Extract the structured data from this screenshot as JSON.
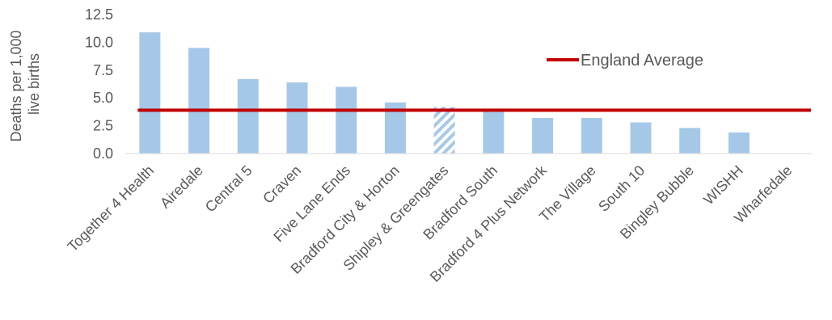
{
  "chart_data": {
    "type": "bar",
    "title": "",
    "ylabel_lines": [
      "Deaths per 1,000",
      "live births"
    ],
    "xlabel": "",
    "ylim": [
      0,
      12.5
    ],
    "yticks": [
      "0.0",
      "2.5",
      "5.0",
      "7.5",
      "10.0",
      "12.5"
    ],
    "grid": false,
    "legend_position": "top-right",
    "categories": [
      "Together 4 Health",
      "Airedale",
      "Central 5",
      "Craven",
      "Five Lane Ends",
      "Bradford City & Horton",
      "Shipley & Greengates",
      "Bradford South",
      "Bradford 4 Plus Network",
      "The Village",
      "South 10",
      "Bingley Bubble",
      "WISHH",
      "Wharfedale"
    ],
    "values": [
      10.9,
      9.5,
      6.7,
      6.4,
      6.0,
      4.6,
      4.2,
      3.9,
      3.2,
      3.2,
      2.8,
      2.3,
      1.9,
      0
    ],
    "hatched_categories": [
      "Shipley & Greengates"
    ],
    "bar_color": "#a6c8e8",
    "reference_line": {
      "name": "England Average",
      "value": 3.9,
      "color": "#c00000"
    }
  }
}
